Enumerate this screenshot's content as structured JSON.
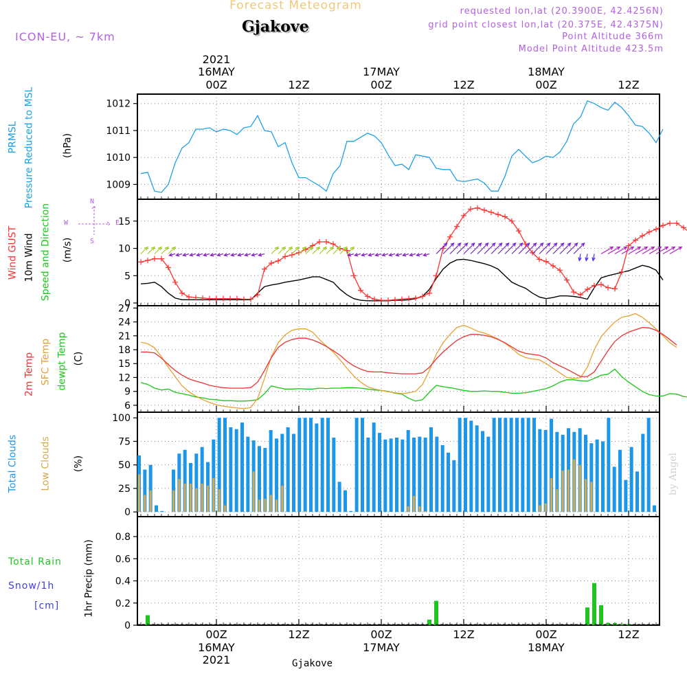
{
  "header": {
    "title": "Forecast Meteogram",
    "station": "Gjakove",
    "model": "ICON-EU, ~ 7km",
    "requested": "requested lon,lat (20.3900E, 42.4256N)",
    "gridpoint": "grid point closest lon,lat (20.375E, 42.4375N)",
    "point_altitude": "Point Altitude 366m",
    "model_altitude": "Model Point Altitude 423.5m",
    "watermark": "by Angel",
    "bottom_label": "Gjakove"
  },
  "labels": {
    "prmsl_short": "PRMSL",
    "prmsl_long": "Pressure Reduced to MSL",
    "prmsl_unit": "(hPa)",
    "wind_gust": "Wind GUST",
    "wind_10m": "10m Wind",
    "wind_dir": "Speed and Direction",
    "wind_unit": "(m/s)",
    "temp_2m": "2m Temp",
    "temp_sfc": "SFC Temp",
    "temp_dew": "dewpt Temp",
    "temp_unit": "(C)",
    "cloud_total": "Total Clouds",
    "cloud_low": "Low Clouds",
    "cloud_unit": "(%)",
    "rain_total": "Total  Rain",
    "snow": "Snow/1h",
    "snow_unit": "[cm]",
    "precip_axis": "1hr Precip (mm)",
    "compass_n": "N",
    "compass_s": "S",
    "compass_w": "W",
    "compass_e": "E"
  },
  "colors": {
    "pressure": "#1ca0e8",
    "gust": "#ff3030",
    "wind": "#000000",
    "temp2m": "#ee3030",
    "sfc": "#e8a030",
    "dew": "#18c818",
    "total_clouds": "#1c96e8",
    "low_clouds": "#d4aa50",
    "rain": "#22c422",
    "snow": "#4040e0",
    "accent": "#b260e0"
  },
  "chart_data": [
    {
      "type": "line",
      "title": "Pressure Reduced to MSL",
      "ylabel": "(hPa)",
      "ylim": [
        1008.45,
        1012.35
      ],
      "yticks": [
        "1009",
        "1010",
        "1011",
        "1012"
      ],
      "x_start_hours": -11,
      "x_step_hours": 1,
      "series": [
        {
          "name": "PRMSL",
          "values": [
            1009.4,
            1009.45,
            1008.75,
            1008.7,
            1009.0,
            1009.8,
            1010.35,
            1010.55,
            1011.05,
            1011.05,
            1011.1,
            1010.95,
            1011.05,
            1011.0,
            1010.85,
            1011.1,
            1011.15,
            1011.55,
            1011.0,
            1010.95,
            1010.4,
            1010.55,
            1009.8,
            1009.25,
            1009.25,
            1009.1,
            1008.95,
            1008.75,
            1009.4,
            1009.7,
            1010.6,
            1010.6,
            1010.75,
            1010.9,
            1010.8,
            1010.55,
            1010.1,
            1009.7,
            1009.75,
            1009.55,
            1010.1,
            1010.05,
            1010.0,
            1009.6,
            1009.55,
            1009.55,
            1009.15,
            1009.1,
            1009.15,
            1009.2,
            1009.05,
            1008.75,
            1008.75,
            1009.3,
            1010.05,
            1010.3,
            1010.05,
            1009.8,
            1009.9,
            1010.05,
            1010.0,
            1010.2,
            1010.6,
            1011.25,
            1011.5,
            1012.1,
            1012.0,
            1011.85,
            1011.75,
            1012.05,
            1011.85,
            1011.55,
            1011.2,
            1011.15,
            1010.9,
            1010.55,
            1011.05
          ]
        }
      ]
    },
    {
      "type": "line",
      "title": "Wind GUST / 10m Wind Speed and Direction",
      "ylabel": "(m/s)",
      "ylim": [
        -0.5,
        19
      ],
      "yticks": [
        "0",
        "5",
        "10",
        "15"
      ],
      "x_start_hours": -11,
      "x_step_hours": 1,
      "series": [
        {
          "name": "Wind GUST",
          "values": [
            7.5,
            7.8,
            8.1,
            8.1,
            6.5,
            3.8,
            1.8,
            1.1,
            1.0,
            0.9,
            0.8,
            0.8,
            0.8,
            0.8,
            0.8,
            0.7,
            0.7,
            1.5,
            6.2,
            7.3,
            7.7,
            8.5,
            8.8,
            9.2,
            9.8,
            10.5,
            11.2,
            11.2,
            10.8,
            10.0,
            9.6,
            5.0,
            2.3,
            1.2,
            0.7,
            0.5,
            0.5,
            0.6,
            0.7,
            0.8,
            0.9,
            1.2,
            1.8,
            5.0,
            10.0,
            12.1,
            14.0,
            16.0,
            17.2,
            17.4,
            17.0,
            16.6,
            16.2,
            15.8,
            15.0,
            13.2,
            10.8,
            9.2,
            8.0,
            7.6,
            6.8,
            6.0,
            4.2,
            2.0,
            1.5,
            2.5,
            3.2,
            3.4,
            2.8,
            2.6,
            5.7,
            10.5,
            11.5,
            12.3,
            13.0,
            13.5,
            14.2,
            14.6,
            14.6,
            13.8,
            12.8
          ]
        },
        {
          "name": "10m Wind",
          "values": [
            3.5,
            3.6,
            3.8,
            3.0,
            1.8,
            0.9,
            0.6,
            0.6,
            0.6,
            0.6,
            0.6,
            0.6,
            0.6,
            0.6,
            0.6,
            0.6,
            0.6,
            1.8,
            3.0,
            3.3,
            3.5,
            3.8,
            4.0,
            4.2,
            4.5,
            4.8,
            4.8,
            4.3,
            3.8,
            2.5,
            1.5,
            0.8,
            0.5,
            0.4,
            0.4,
            0.4,
            0.4,
            0.5,
            0.5,
            0.6,
            0.8,
            1.2,
            2.5,
            4.5,
            6.2,
            7.3,
            7.9,
            8.0,
            7.8,
            7.5,
            7.2,
            6.8,
            6.2,
            5.0,
            3.8,
            3.2,
            2.7,
            1.8,
            1.1,
            0.8,
            1.0,
            1.3,
            1.3,
            1.2,
            1.0,
            0.7,
            2.8,
            4.6,
            5.0,
            5.3,
            5.6,
            5.9,
            6.4,
            6.9,
            6.6,
            6.0,
            4.2
          ]
        }
      ]
    },
    {
      "type": "line",
      "title": "2m Temp / SFC Temp / dewpt Temp",
      "ylabel": "(C)",
      "ylim": [
        4.5,
        27.5
      ],
      "yticks": [
        "6",
        "9",
        "12",
        "15",
        "18",
        "21",
        "24",
        "27"
      ],
      "x_start_hours": -11,
      "x_step_hours": 1,
      "series": [
        {
          "name": "2m Temp",
          "values": [
            17.5,
            17.5,
            17.3,
            16.2,
            14.8,
            13.5,
            12.5,
            11.7,
            11.2,
            10.8,
            10.3,
            10.0,
            9.8,
            9.7,
            9.7,
            9.7,
            9.8,
            11.0,
            13.5,
            16.3,
            18.5,
            19.6,
            20.2,
            20.5,
            20.5,
            20.1,
            19.5,
            18.7,
            17.8,
            16.8,
            15.5,
            14.5,
            13.8,
            13.3,
            13.2,
            13.2,
            13.0,
            12.9,
            12.8,
            12.8,
            12.8,
            13.0,
            14.2,
            16.0,
            17.5,
            18.8,
            20.0,
            20.8,
            21.3,
            21.3,
            21.1,
            20.8,
            20.2,
            19.5,
            18.6,
            17.7,
            17.2,
            17.0,
            16.8,
            16.2,
            15.2,
            14.5,
            13.8,
            13.0,
            12.2,
            12.2,
            13.2,
            15.5,
            17.8,
            19.8,
            21.0,
            21.8,
            22.3,
            22.8,
            22.7,
            22.2,
            21.3,
            20.2,
            19.0
          ]
        },
        {
          "name": "SFC Temp",
          "values": [
            19.6,
            19.3,
            18.4,
            16.5,
            14.2,
            12.2,
            10.2,
            8.9,
            8.0,
            7.2,
            6.6,
            6.1,
            5.8,
            5.6,
            5.4,
            5.3,
            5.5,
            7.5,
            11.8,
            16.5,
            19.5,
            21.2,
            22.2,
            22.5,
            22.5,
            21.8,
            20.2,
            18.8,
            17.5,
            15.8,
            14.0,
            12.3,
            11.0,
            10.0,
            9.5,
            9.2,
            8.9,
            8.7,
            8.5,
            8.7,
            9.0,
            10.5,
            13.5,
            17.0,
            19.5,
            21.3,
            22.8,
            23.3,
            22.7,
            22.0,
            21.6,
            21.0,
            20.3,
            19.4,
            18.3,
            17.0,
            16.3,
            16.0,
            15.8,
            15.0,
            14.0,
            13.0,
            12.0,
            11.8,
            12.0,
            14.2,
            18.0,
            20.8,
            22.5,
            24.0,
            25.0,
            25.3,
            25.8,
            25.0,
            23.8,
            22.5,
            21.0,
            19.5,
            18.5
          ]
        },
        {
          "name": "dewpt Temp",
          "values": [
            10.9,
            10.5,
            9.7,
            9.3,
            9.5,
            8.8,
            8.5,
            8.2,
            7.8,
            7.6,
            7.3,
            7.2,
            7.0,
            7.0,
            6.9,
            6.9,
            7.0,
            7.2,
            8.5,
            10.2,
            9.8,
            9.5,
            9.5,
            9.6,
            9.5,
            9.5,
            9.7,
            9.6,
            9.7,
            9.7,
            9.8,
            9.8,
            9.7,
            9.5,
            9.3,
            9.2,
            9.0,
            8.6,
            8.4,
            7.5,
            6.9,
            7.2,
            8.8,
            10.3,
            10.0,
            9.8,
            9.5,
            9.2,
            9.0,
            9.0,
            9.1,
            9.0,
            9.0,
            8.8,
            8.6,
            8.6,
            8.7,
            9.0,
            9.3,
            9.6,
            10.2,
            11.0,
            11.5,
            11.5,
            11.3,
            11.2,
            11.8,
            12.5,
            12.7,
            13.8,
            12.2,
            11.0,
            10.0,
            9.0,
            8.3,
            8.0,
            8.0,
            8.5,
            8.4,
            7.9,
            7.7
          ]
        }
      ]
    },
    {
      "type": "bar",
      "title": "Total Clouds / Low Clouds",
      "ylabel": "(%)",
      "ylim": [
        -5,
        106
      ],
      "yticks": [
        "0",
        "25",
        "50",
        "75",
        "100"
      ],
      "x_start_hours": -11,
      "x_step_hours": 1,
      "series": [
        {
          "name": "Total Clouds",
          "values": [
            60,
            45,
            50,
            7,
            1,
            0,
            45,
            62,
            66,
            52,
            62,
            69,
            53,
            77,
            100,
            100,
            90,
            88,
            95,
            80,
            76,
            70,
            68,
            87,
            78,
            83,
            90,
            83,
            100,
            100,
            100,
            94,
            100,
            100,
            79,
            32,
            23,
            1,
            100,
            100,
            79,
            95,
            84,
            77,
            78,
            79,
            77,
            87,
            79,
            80,
            79,
            90,
            80,
            71,
            63,
            55,
            100,
            100,
            97,
            92,
            86,
            80,
            100,
            100,
            100,
            100,
            100,
            100,
            100,
            100,
            88,
            87,
            99,
            85,
            82,
            89,
            85,
            89,
            82,
            73,
            77,
            75,
            100,
            48,
            66,
            34,
            69,
            43,
            83,
            100,
            7
          ]
        },
        {
          "name": "Low Clouds",
          "values": [
            40,
            18,
            23,
            0,
            0,
            0,
            23,
            35,
            30,
            30,
            25,
            30,
            28,
            36,
            24,
            7,
            0,
            0,
            0,
            0,
            43,
            13,
            14,
            18,
            13,
            28,
            0,
            0,
            0,
            1,
            0,
            0,
            0,
            0,
            0,
            0,
            0,
            0,
            0,
            0,
            0,
            0,
            0,
            0,
            0,
            0,
            0,
            6,
            17,
            6,
            1,
            0,
            0,
            0,
            0,
            0,
            0,
            0,
            0,
            0,
            0,
            0,
            0,
            0,
            0,
            0,
            0,
            0,
            0,
            0,
            7,
            9,
            36,
            24,
            44,
            45,
            56,
            50,
            35,
            32,
            0,
            0,
            0,
            0,
            0,
            0,
            0,
            0,
            0,
            0,
            0
          ]
        }
      ]
    },
    {
      "type": "bar",
      "title": "1hr Precip (mm)",
      "ylabel": "1hr Precip (mm)",
      "ylim": [
        0,
        0.98
      ],
      "yticks": [
        "0",
        "0.2",
        "0.4",
        "0.6",
        "0.8"
      ],
      "x_start_hours": -11,
      "x_step_hours": 1,
      "series": [
        {
          "name": "Total Rain",
          "values": [
            0,
            0.09,
            0,
            0,
            0,
            0,
            0,
            0,
            0,
            0,
            0,
            0,
            0,
            0,
            0,
            0,
            0,
            0,
            0,
            0,
            0,
            0,
            0,
            0,
            0,
            0,
            0,
            0,
            0,
            0,
            0,
            0,
            0,
            0,
            0,
            0,
            0,
            0,
            0,
            0,
            0,
            0,
            0.05,
            0.22,
            0,
            0,
            0,
            0,
            0,
            0,
            0,
            0,
            0,
            0,
            0,
            0,
            0,
            0,
            0,
            0,
            0,
            0,
            0,
            0,
            0,
            0.16,
            0.38,
            0.18,
            0.02,
            0.02,
            0.01,
            0.01,
            0,
            0,
            0,
            0,
            0,
            0
          ]
        },
        {
          "name": "Snow/1h",
          "values": []
        }
      ]
    }
  ],
  "time_axis": {
    "top": [
      {
        "year": "2021",
        "date": "16MAY",
        "hour": "00Z",
        "h": 0
      },
      {
        "year": "",
        "date": "",
        "hour": "12Z",
        "h": 12
      },
      {
        "year": "",
        "date": "17MAY",
        "hour": "00Z",
        "h": 24
      },
      {
        "year": "",
        "date": "",
        "hour": "12Z",
        "h": 36
      },
      {
        "year": "",
        "date": "18MAY",
        "hour": "00Z",
        "h": 48
      },
      {
        "year": "",
        "date": "",
        "hour": "12Z",
        "h": 60
      }
    ],
    "bottom": [
      {
        "hour": "00Z",
        "date": "16MAY",
        "year": "2021",
        "h": 0
      },
      {
        "hour": "12Z",
        "date": "",
        "year": "",
        "h": 12
      },
      {
        "hour": "00Z",
        "date": "17MAY",
        "year": "",
        "h": 24
      },
      {
        "hour": "12Z",
        "date": "",
        "year": "",
        "h": 36
      },
      {
        "hour": "00Z",
        "date": "18MAY",
        "year": "",
        "h": 48
      },
      {
        "hour": "12Z",
        "date": "",
        "year": "",
        "h": 60
      }
    ]
  },
  "wind_dir_runs": [
    {
      "from": -11,
      "to": -7,
      "dir": 45,
      "len": 14
    },
    {
      "from": -6,
      "to": 7,
      "dir": 255,
      "len": 9
    },
    {
      "from": 8,
      "to": 19,
      "dir": 45,
      "len": 14
    },
    {
      "from": 20,
      "to": 31,
      "dir": 255,
      "len": 9
    },
    {
      "from": 32,
      "to": 52,
      "dir": 45,
      "len": 22
    },
    {
      "from": 53,
      "to": 55,
      "dir": 190,
      "len": 10
    },
    {
      "from": 56,
      "to": 66,
      "dir": 60,
      "len": 20
    }
  ]
}
